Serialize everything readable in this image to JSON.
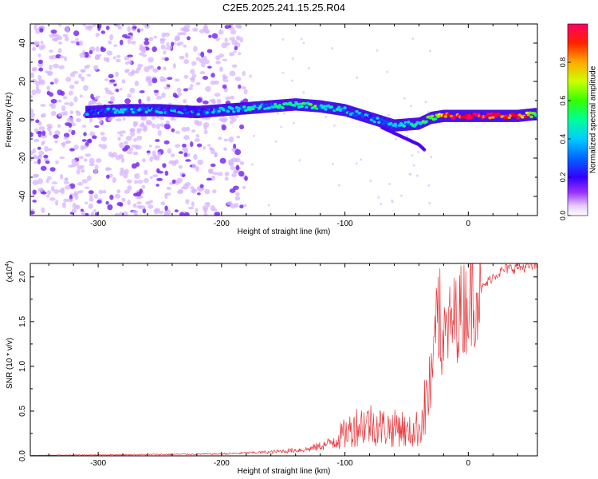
{
  "title": "C2E5.2025.241.15.25.R04",
  "chart_data": [
    {
      "type": "heatmap",
      "name": "spectrogram",
      "xlabel": "Height of straight line (km)",
      "ylabel": "Frequency (Hz)",
      "xlim": [
        -355,
        56
      ],
      "ylim": [
        -50,
        50
      ],
      "xticks": [
        -300,
        -200,
        -100,
        0
      ],
      "yticks": [
        -40,
        -20,
        0,
        20,
        40
      ],
      "colorbar": {
        "label": "Normalized spectral amplitude",
        "range": [
          0.0,
          1.0
        ],
        "ticks": [
          "0.0",
          "0.2",
          "0.4",
          "0.6",
          "0.8"
        ],
        "colormap": [
          "#ffffff",
          "#d9b8ff",
          "#8a2be2",
          "#3f00ff",
          "#0050ff",
          "#00d5ff",
          "#00ff7f",
          "#66ff00",
          "#ffff00",
          "#ff9900",
          "#ff0000",
          "#ff0066"
        ]
      },
      "ridge": {
        "x": [
          -310,
          -280,
          -250,
          -220,
          -200,
          -180,
          -160,
          -140,
          -120,
          -100,
          -80,
          -60,
          -40,
          -30,
          -20,
          -10,
          0,
          20,
          40,
          55
        ],
        "frequency_hz": [
          4,
          5,
          5,
          4,
          5,
          6,
          7,
          8,
          7,
          5,
          1,
          -3,
          -2,
          1,
          2,
          2,
          2,
          2,
          2,
          3
        ],
        "amplitude": [
          0.35,
          0.4,
          0.38,
          0.35,
          0.42,
          0.45,
          0.5,
          0.55,
          0.5,
          0.45,
          0.35,
          0.4,
          0.5,
          0.6,
          0.8,
          0.9,
          0.95,
          0.95,
          0.9,
          0.6
        ]
      },
      "branch": {
        "x": [
          -70,
          -60,
          -50,
          -40,
          -35
        ],
        "frequency_hz": [
          -4,
          -7,
          -10,
          -13,
          -16
        ]
      },
      "noise_region_x": [
        -355,
        -180
      ]
    },
    {
      "type": "line",
      "name": "snr",
      "xlabel": "Height of straight line (km)",
      "ylabel": "SNR (10 * v/v)",
      "scale_label": "(x10",
      "scale_exponent": "4",
      "xlim": [
        -355,
        56
      ],
      "ylim": [
        0,
        21500
      ],
      "xticks": [
        -300,
        -200,
        -100,
        0
      ],
      "yticks": [
        "0.0",
        "0.5",
        "1.0",
        "1.5",
        "2.0"
      ],
      "ytick_values": [
        0,
        5000,
        10000,
        15000,
        20000
      ],
      "series": [
        {
          "name": "SNR",
          "color": "#e8353a",
          "x": [
            -355,
            -300,
            -200,
            -160,
            -130,
            -115,
            -100,
            -90,
            -80,
            -70,
            -60,
            -55,
            -50,
            -45,
            -40,
            -35,
            -30,
            -28,
            -25,
            -22,
            -20,
            -15,
            -10,
            -5,
            0,
            10,
            20,
            30,
            40,
            50,
            56
          ],
          "values": [
            50,
            100,
            200,
            400,
            700,
            1200,
            2300,
            3200,
            3400,
            3000,
            2800,
            3200,
            2300,
            2600,
            2900,
            5000,
            8400,
            10500,
            13500,
            11500,
            12500,
            14000,
            15000,
            15800,
            16800,
            18500,
            20000,
            20800,
            21000,
            21100,
            21200
          ]
        }
      ]
    }
  ]
}
